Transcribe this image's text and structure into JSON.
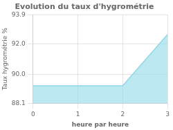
{
  "chart_data": {
    "type": "area",
    "title": "Evolution du taux d'hygrométrie",
    "xlabel": "heure par heure",
    "ylabel": "Taux hygrométrie %",
    "x": [
      0,
      2,
      3
    ],
    "values": [
      89.25,
      89.25,
      92.6
    ],
    "color": "#8dd8e8",
    "xlim": [
      0,
      3
    ],
    "ylim": [
      88.1,
      93.9
    ],
    "xticks": [
      0,
      1,
      2,
      3
    ],
    "yticks": [
      88.1,
      {
        "value": 90.0,
        "label": "90.0"
      },
      {
        "value": 92.0,
        "label": "92.0"
      },
      93.9
    ],
    "grid": true
  }
}
